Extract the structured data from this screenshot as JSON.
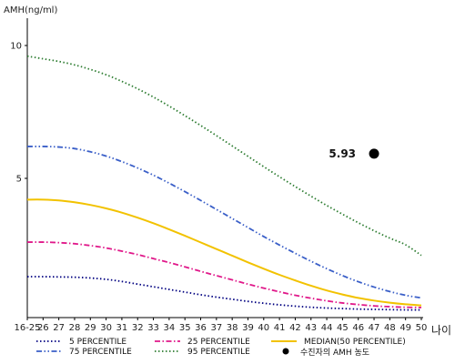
{
  "chart_data": {
    "type": "line",
    "ylabel": "AMH(ng/ml)",
    "xlabel": "나이",
    "title": "",
    "ylim": [
      0,
      11
    ],
    "y_ticks": [
      5,
      10
    ],
    "x": [
      "16-25",
      "26",
      "27",
      "28",
      "29",
      "30",
      "31",
      "32",
      "33",
      "34",
      "35",
      "36",
      "37",
      "38",
      "39",
      "40",
      "41",
      "42",
      "43",
      "44",
      "45",
      "46",
      "47",
      "48",
      "49",
      "50"
    ],
    "grid": false,
    "legend_position": "bottom",
    "series": [
      {
        "name": "5 PERCENTILE",
        "color": "#000080",
        "dash": "dot",
        "values": [
          1.3,
          1.3,
          1.29,
          1.28,
          1.25,
          1.2,
          1.12,
          1.02,
          0.92,
          0.82,
          0.72,
          0.62,
          0.53,
          0.45,
          0.37,
          0.3,
          0.24,
          0.19,
          0.15,
          0.12,
          0.1,
          0.08,
          0.07,
          0.06,
          0.05,
          0.05
        ]
      },
      {
        "name": "25 PERCENTILE",
        "color": "#e0198a",
        "dash": "dashdot",
        "values": [
          2.6,
          2.6,
          2.58,
          2.54,
          2.47,
          2.38,
          2.26,
          2.13,
          1.98,
          1.83,
          1.67,
          1.5,
          1.34,
          1.18,
          1.02,
          0.87,
          0.73,
          0.6,
          0.49,
          0.39,
          0.31,
          0.25,
          0.2,
          0.17,
          0.15,
          0.14
        ]
      },
      {
        "name": "MEDIAN(50 PERCENTILE)",
        "color": "#f2c200",
        "dash": "solid",
        "values": [
          4.2,
          4.2,
          4.17,
          4.1,
          4.0,
          3.87,
          3.71,
          3.52,
          3.31,
          3.08,
          2.84,
          2.59,
          2.34,
          2.09,
          1.84,
          1.6,
          1.37,
          1.16,
          0.96,
          0.78,
          0.63,
          0.5,
          0.4,
          0.32,
          0.26,
          0.22
        ]
      },
      {
        "name": "75 PERCENTILE",
        "color": "#3a5fc8",
        "dash": "dashdotdot",
        "values": [
          6.2,
          6.2,
          6.18,
          6.12,
          6.0,
          5.84,
          5.63,
          5.39,
          5.12,
          4.82,
          4.5,
          4.17,
          3.83,
          3.49,
          3.15,
          2.81,
          2.49,
          2.18,
          1.88,
          1.6,
          1.34,
          1.11,
          0.91,
          0.74,
          0.6,
          0.5
        ]
      },
      {
        "name": "95 PERCENTILE",
        "color": "#2e7d32",
        "dash": "dot",
        "values": [
          9.6,
          9.5,
          9.4,
          9.27,
          9.1,
          8.9,
          8.65,
          8.37,
          8.06,
          7.72,
          7.36,
          6.99,
          6.61,
          6.22,
          5.83,
          5.44,
          5.06,
          4.69,
          4.33,
          3.98,
          3.65,
          3.33,
          3.03,
          2.75,
          2.5,
          2.1
        ]
      }
    ],
    "marker": {
      "name": "수진자의 AMH 농도",
      "x": "47",
      "y": 5.93,
      "label": "5.93",
      "color": "#000000"
    }
  }
}
